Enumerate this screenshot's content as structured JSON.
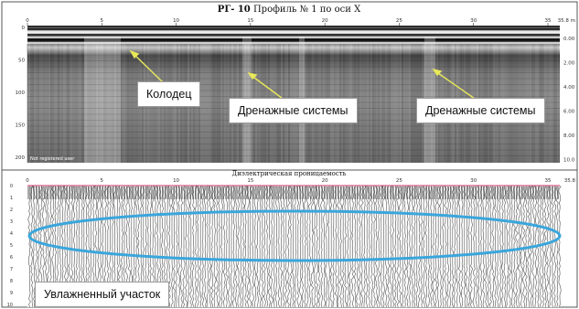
{
  "top_panel": {
    "title_bold": "РГ- 10",
    "title_rest": " Профиль № 1 по оси X",
    "x_ticks": [
      "0",
      "5",
      "10",
      "15",
      "20",
      "25",
      "30",
      "35"
    ],
    "x_end_label": "35.8 m",
    "y_ticks_left": [
      "0",
      "50",
      "100",
      "150",
      "200"
    ],
    "y_ticks_right": [
      "0.00",
      "2.00",
      "4.00",
      "6.00",
      "8.00",
      "10.0"
    ],
    "watermark": "Not registered user",
    "annotations": {
      "well": "Колодец",
      "drain_1": "Дренажные системы",
      "drain_2": "Дренажные системы"
    }
  },
  "bottom_panel": {
    "title": "Диэлектрическая проницаемость",
    "x_ticks": [
      "0",
      "5",
      "10",
      "15",
      "20",
      "25",
      "30",
      "35"
    ],
    "x_end_label": "35.8",
    "y_ticks_left": [
      "0",
      "1",
      "2",
      "3",
      "4",
      "5",
      "6",
      "7",
      "8",
      "9",
      "10"
    ],
    "annotation": "Увлажненный участок"
  },
  "colors": {
    "arrow": "#e8e85a",
    "ellipse": "#3aa6dc",
    "surface_line": "#cc3366"
  }
}
